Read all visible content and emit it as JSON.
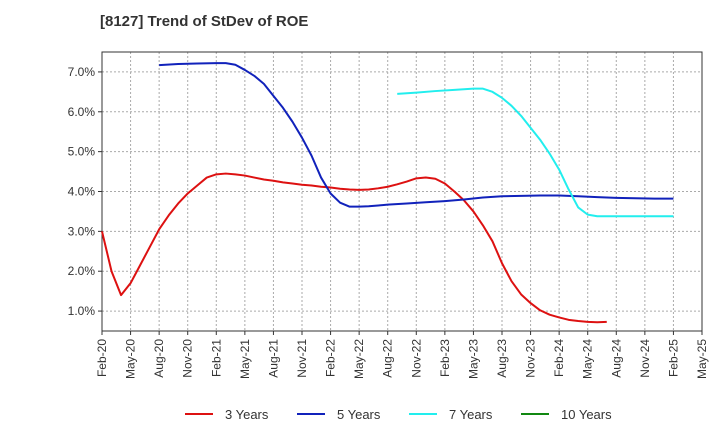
{
  "chart_data": {
    "type": "line",
    "title": "[8127]  Trend of StDev of ROE",
    "xlabel": "",
    "ylabel": "",
    "ylim": [
      0.5,
      7.5
    ],
    "grid": true,
    "legend_position": "bottom",
    "y_ticks": [
      1.0,
      2.0,
      3.0,
      4.0,
      5.0,
      6.0,
      7.0
    ],
    "y_tick_labels": [
      "1.0%",
      "2.0%",
      "3.0%",
      "4.0%",
      "5.0%",
      "6.0%",
      "7.0%"
    ],
    "x_tick_labels": [
      "Feb-20",
      "May-20",
      "Aug-20",
      "Nov-20",
      "Feb-21",
      "May-21",
      "Aug-21",
      "Nov-21",
      "Feb-22",
      "May-22",
      "Aug-22",
      "Nov-22",
      "Feb-23",
      "May-23",
      "Aug-23",
      "Nov-23",
      "Feb-24",
      "May-24",
      "Aug-24",
      "Nov-24",
      "Feb-25",
      "May-25"
    ],
    "series": [
      {
        "name": "3 Years",
        "color": "#dd1111",
        "points": [
          [
            0,
            3.0
          ],
          [
            1,
            2.0
          ],
          [
            2,
            1.4
          ],
          [
            3,
            1.7
          ],
          [
            4,
            2.15
          ],
          [
            5,
            2.6
          ],
          [
            6,
            3.05
          ],
          [
            7,
            3.4
          ],
          [
            8,
            3.7
          ],
          [
            9,
            3.95
          ],
          [
            10,
            4.15
          ],
          [
            11,
            4.35
          ],
          [
            12,
            4.43
          ],
          [
            13,
            4.45
          ],
          [
            14,
            4.43
          ],
          [
            15,
            4.4
          ],
          [
            16,
            4.35
          ],
          [
            17,
            4.3
          ],
          [
            18,
            4.27
          ],
          [
            19,
            4.23
          ],
          [
            20,
            4.2
          ],
          [
            21,
            4.17
          ],
          [
            22,
            4.15
          ],
          [
            23,
            4.12
          ],
          [
            24,
            4.1
          ],
          [
            25,
            4.07
          ],
          [
            26,
            4.05
          ],
          [
            27,
            4.04
          ],
          [
            28,
            4.05
          ],
          [
            29,
            4.08
          ],
          [
            30,
            4.12
          ],
          [
            31,
            4.18
          ],
          [
            32,
            4.25
          ],
          [
            33,
            4.33
          ],
          [
            34,
            4.35
          ],
          [
            35,
            4.32
          ],
          [
            36,
            4.2
          ],
          [
            37,
            4.0
          ],
          [
            38,
            3.78
          ],
          [
            39,
            3.5
          ],
          [
            40,
            3.15
          ],
          [
            41,
            2.75
          ],
          [
            42,
            2.2
          ],
          [
            43,
            1.75
          ],
          [
            44,
            1.42
          ],
          [
            45,
            1.2
          ],
          [
            46,
            1.02
          ],
          [
            47,
            0.91
          ],
          [
            48,
            0.84
          ],
          [
            49,
            0.78
          ],
          [
            50,
            0.75
          ],
          [
            51,
            0.73
          ],
          [
            52,
            0.72
          ],
          [
            53,
            0.73
          ]
        ]
      },
      {
        "name": "5 Years",
        "color": "#1122bb",
        "points": [
          [
            6,
            7.17
          ],
          [
            8,
            7.2
          ],
          [
            10,
            7.21
          ],
          [
            12,
            7.22
          ],
          [
            13,
            7.22
          ],
          [
            14,
            7.18
          ],
          [
            15,
            7.05
          ],
          [
            16,
            6.9
          ],
          [
            17,
            6.7
          ],
          [
            18,
            6.4
          ],
          [
            19,
            6.1
          ],
          [
            20,
            5.75
          ],
          [
            21,
            5.35
          ],
          [
            22,
            4.9
          ],
          [
            23,
            4.35
          ],
          [
            24,
            3.95
          ],
          [
            25,
            3.72
          ],
          [
            26,
            3.62
          ],
          [
            27,
            3.62
          ],
          [
            28,
            3.63
          ],
          [
            29,
            3.65
          ],
          [
            30,
            3.67
          ],
          [
            32,
            3.7
          ],
          [
            34,
            3.73
          ],
          [
            36,
            3.76
          ],
          [
            38,
            3.8
          ],
          [
            40,
            3.85
          ],
          [
            42,
            3.88
          ],
          [
            44,
            3.89
          ],
          [
            46,
            3.9
          ],
          [
            48,
            3.9
          ],
          [
            50,
            3.88
          ],
          [
            52,
            3.86
          ],
          [
            54,
            3.84
          ],
          [
            56,
            3.83
          ],
          [
            58,
            3.82
          ],
          [
            60,
            3.82
          ]
        ]
      },
      {
        "name": "7 Years",
        "color": "#22eeee",
        "points": [
          [
            31,
            6.45
          ],
          [
            33,
            6.48
          ],
          [
            35,
            6.52
          ],
          [
            37,
            6.55
          ],
          [
            39,
            6.58
          ],
          [
            40,
            6.58
          ],
          [
            41,
            6.5
          ],
          [
            42,
            6.35
          ],
          [
            43,
            6.15
          ],
          [
            44,
            5.9
          ],
          [
            45,
            5.6
          ],
          [
            46,
            5.3
          ],
          [
            47,
            4.95
          ],
          [
            48,
            4.55
          ],
          [
            49,
            4.05
          ],
          [
            50,
            3.6
          ],
          [
            51,
            3.42
          ],
          [
            52,
            3.38
          ],
          [
            54,
            3.38
          ],
          [
            56,
            3.38
          ],
          [
            58,
            3.38
          ],
          [
            60,
            3.38
          ]
        ]
      },
      {
        "name": "10 Years",
        "color": "#118811",
        "points": []
      }
    ]
  }
}
